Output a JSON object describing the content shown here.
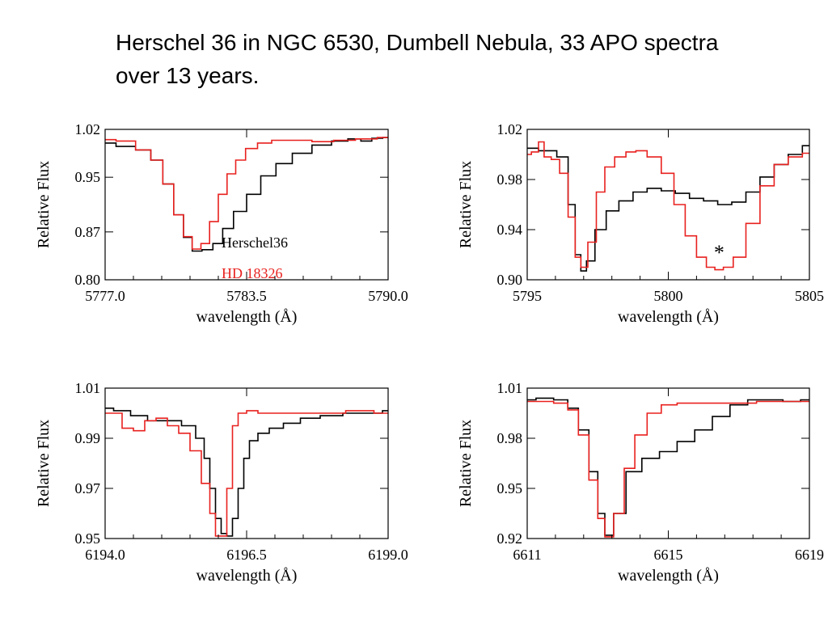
{
  "slide": {
    "title_line1": "Herschel 36 in NGC 6530, Dumbell Nebula, 33 APO spectra",
    "title_line2": "over 13 years."
  },
  "colors": {
    "herschel": "#000000",
    "hd": "#e8211f"
  },
  "chart_data": [
    {
      "type": "line",
      "title": "",
      "xlabel": "wavelength (Å)",
      "ylabel": "Relative Flux",
      "xlim": [
        5777.0,
        5790.0
      ],
      "ylim": [
        0.8,
        1.02
      ],
      "xticks": [
        5777.0,
        5783.5,
        5790.0
      ],
      "xtick_labels": [
        "5777.0",
        "5783.5",
        "5790.0"
      ],
      "yticks": [
        0.8,
        0.87,
        0.95,
        1.02
      ],
      "ytick_labels": [
        "0.80",
        "0.87",
        "0.95",
        "1.02"
      ],
      "legend": [
        "Herschel36",
        "HD 18326"
      ],
      "annotations": [],
      "series": [
        {
          "name": "Herschel36",
          "color": "#000000",
          "x": [
            5777.0,
            5778.0,
            5778.8,
            5779.4,
            5779.9,
            5780.4,
            5780.8,
            5781.2,
            5781.7,
            5782.2,
            5782.6,
            5783.2,
            5783.8,
            5784.5,
            5785.2,
            5786.0,
            5787.0,
            5787.8,
            5788.5,
            5789.0,
            5789.5,
            5790.0
          ],
          "y": [
            1.0,
            0.995,
            0.99,
            0.975,
            0.94,
            0.895,
            0.862,
            0.842,
            0.844,
            0.853,
            0.875,
            0.9,
            0.925,
            0.952,
            0.97,
            0.985,
            0.997,
            1.003,
            1.006,
            1.003,
            1.007,
            1.008
          ]
        },
        {
          "name": "HD 18326",
          "color": "#e8211f",
          "x": [
            5777.0,
            5778.0,
            5778.8,
            5779.4,
            5779.9,
            5780.4,
            5780.8,
            5781.2,
            5781.6,
            5782.0,
            5782.4,
            5782.8,
            5783.2,
            5783.7,
            5784.3,
            5785.0,
            5786.0,
            5787.0,
            5788.0,
            5789.0,
            5790.0
          ],
          "y": [
            1.005,
            1.003,
            0.99,
            0.975,
            0.94,
            0.895,
            0.863,
            0.845,
            0.853,
            0.885,
            0.925,
            0.955,
            0.975,
            0.992,
            1.0,
            1.004,
            1.004,
            1.002,
            1.004,
            1.006,
            1.008
          ]
        }
      ]
    },
    {
      "type": "line",
      "title": "",
      "xlabel": "wavelength (Å)",
      "ylabel": "Relative Flux",
      "xlim": [
        5795,
        5805
      ],
      "ylim": [
        0.9,
        1.02
      ],
      "xticks": [
        5795,
        5800,
        5805
      ],
      "xtick_labels": [
        "5795",
        "5800",
        "5805"
      ],
      "yticks": [
        0.9,
        0.94,
        0.98,
        1.02
      ],
      "ytick_labels": [
        "0.90",
        "0.94",
        "0.98",
        "1.02"
      ],
      "legend": [],
      "annotations": [
        "*"
      ],
      "series": [
        {
          "name": "Herschel36",
          "color": "#000000",
          "x": [
            5795.0,
            5795.8,
            5796.3,
            5796.6,
            5796.8,
            5797.0,
            5797.2,
            5797.6,
            5798.0,
            5798.5,
            5799.0,
            5799.5,
            5800.0,
            5800.5,
            5801.0,
            5801.5,
            5802.0,
            5802.5,
            5803.0,
            5803.5,
            5804.0,
            5804.5,
            5805.0
          ],
          "y": [
            1.005,
            1.003,
            0.998,
            0.96,
            0.92,
            0.907,
            0.915,
            0.94,
            0.955,
            0.963,
            0.97,
            0.973,
            0.971,
            0.969,
            0.965,
            0.963,
            0.96,
            0.962,
            0.97,
            0.982,
            0.992,
            1.0,
            1.007
          ]
        },
        {
          "name": "HD 18326",
          "color": "#e8211f",
          "x": [
            5795.0,
            5795.3,
            5795.5,
            5795.7,
            5796.0,
            5796.3,
            5796.6,
            5796.8,
            5797.0,
            5797.3,
            5797.6,
            5797.9,
            5798.3,
            5798.7,
            5799.0,
            5799.5,
            5800.0,
            5800.4,
            5800.8,
            5801.2,
            5801.5,
            5801.8,
            5802.1,
            5802.5,
            5803.0,
            5803.5,
            5804.0,
            5804.5,
            5805.0
          ],
          "y": [
            1.0,
            1.002,
            1.01,
            0.998,
            0.996,
            0.985,
            0.95,
            0.918,
            0.91,
            0.93,
            0.97,
            0.99,
            0.998,
            1.002,
            1.003,
            0.998,
            0.985,
            0.96,
            0.935,
            0.918,
            0.91,
            0.908,
            0.91,
            0.918,
            0.945,
            0.975,
            0.992,
            0.998,
            1.001
          ]
        }
      ]
    },
    {
      "type": "line",
      "title": "",
      "xlabel": "wavelength (Å)",
      "ylabel": "Relative Flux",
      "xlim": [
        6194.0,
        6199.0
      ],
      "ylim": [
        0.95,
        1.01
      ],
      "xticks": [
        6194.0,
        6196.5,
        6199.0
      ],
      "xtick_labels": [
        "6194.0",
        "6196.5",
        "6199.0"
      ],
      "yticks": [
        0.95,
        0.97,
        0.99,
        1.01
      ],
      "ytick_labels": [
        "0.95",
        "0.97",
        "0.99",
        "1.01"
      ],
      "legend": [],
      "annotations": [],
      "series": [
        {
          "name": "Herschel36",
          "color": "#000000",
          "x": [
            6194.0,
            6194.3,
            6194.6,
            6194.9,
            6195.2,
            6195.5,
            6195.7,
            6195.8,
            6195.9,
            6196.0,
            6196.1,
            6196.2,
            6196.3,
            6196.4,
            6196.5,
            6196.6,
            6196.8,
            6197.0,
            6197.3,
            6197.6,
            6198.0,
            6198.4,
            6198.8,
            6199.0
          ],
          "y": [
            1.002,
            1.001,
            0.999,
            0.997,
            0.997,
            0.995,
            0.99,
            0.982,
            0.97,
            0.958,
            0.952,
            0.951,
            0.958,
            0.97,
            0.982,
            0.989,
            0.992,
            0.994,
            0.996,
            0.998,
            0.999,
            1.0,
            1.0,
            1.001
          ]
        },
        {
          "name": "HD 18326",
          "color": "#e8211f",
          "x": [
            6194.0,
            6194.2,
            6194.4,
            6194.6,
            6194.8,
            6195.0,
            6195.2,
            6195.4,
            6195.6,
            6195.8,
            6195.9,
            6196.0,
            6196.1,
            6196.2,
            6196.3,
            6196.4,
            6196.6,
            6196.8,
            6197.2,
            6197.6,
            6198.0,
            6198.5,
            6199.0
          ],
          "y": [
            1.0,
            1.0,
            0.994,
            0.993,
            0.997,
            0.998,
            0.995,
            0.992,
            0.985,
            0.972,
            0.96,
            0.951,
            0.951,
            0.97,
            0.995,
            1.0,
            1.001,
            1.0,
            1.0,
            1.0,
            1.0,
            1.001,
            1.0
          ]
        }
      ]
    },
    {
      "type": "line",
      "title": "",
      "xlabel": "wavelength (Å)",
      "ylabel": "Relative Flux",
      "xlim": [
        6611,
        6619
      ],
      "ylim": [
        0.92,
        1.01
      ],
      "xticks": [
        6611,
        6615,
        6619
      ],
      "xtick_labels": [
        "6611",
        "6615",
        "6619"
      ],
      "yticks": [
        0.92,
        0.95,
        0.98,
        1.01
      ],
      "ytick_labels": [
        "0.92",
        "0.95",
        "0.98",
        "1.01"
      ],
      "legend": [],
      "annotations": [],
      "series": [
        {
          "name": "Herschel36",
          "color": "#000000",
          "x": [
            6611.0,
            6611.5,
            6612.0,
            6612.3,
            6612.6,
            6612.9,
            6613.1,
            6613.3,
            6613.6,
            6614.0,
            6614.5,
            6615.0,
            6615.5,
            6616.0,
            6616.5,
            6617.0,
            6617.5,
            6618.0,
            6618.5,
            6619.0
          ],
          "y": [
            1.003,
            1.004,
            1.003,
            0.998,
            0.985,
            0.96,
            0.935,
            0.922,
            0.935,
            0.96,
            0.968,
            0.972,
            0.978,
            0.985,
            0.993,
            1.0,
            1.003,
            1.003,
            1.002,
            1.003
          ]
        },
        {
          "name": "HD 18326",
          "color": "#e8211f",
          "x": [
            6611.0,
            6611.5,
            6612.0,
            6612.3,
            6612.6,
            6612.9,
            6613.1,
            6613.3,
            6613.6,
            6613.9,
            6614.2,
            6614.6,
            6615.0,
            6615.5,
            6616.0,
            6617.0,
            6618.0,
            6619.0
          ],
          "y": [
            1.002,
            1.002,
            1.001,
            0.997,
            0.982,
            0.955,
            0.932,
            0.921,
            0.935,
            0.962,
            0.982,
            0.995,
            1.0,
            1.001,
            1.001,
            1.001,
            1.002,
            1.002
          ]
        }
      ]
    }
  ]
}
